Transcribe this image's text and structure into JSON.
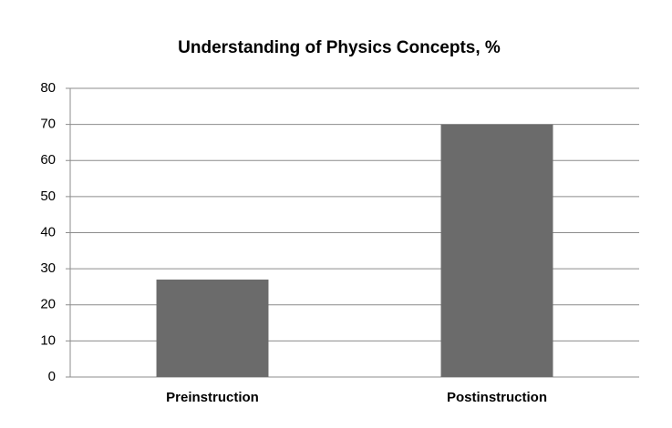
{
  "chart_data": {
    "type": "bar",
    "title": "Understanding of Physics Concepts, %",
    "categories": [
      "Preinstruction",
      "Postinstruction"
    ],
    "values": [
      27,
      70
    ],
    "color": "#6b6b6b",
    "ylim": [
      0,
      80
    ],
    "yticks": [
      0,
      10,
      20,
      30,
      40,
      50,
      60,
      70,
      80
    ],
    "grid": true
  }
}
